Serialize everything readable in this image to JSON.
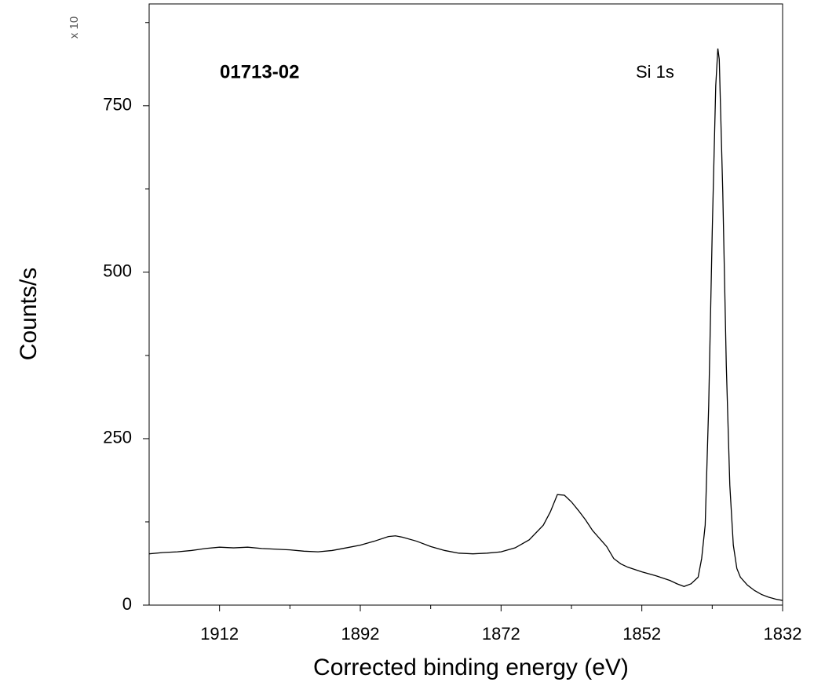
{
  "chart_data": {
    "type": "line",
    "annotations": [
      "01713-02",
      "Si 1s"
    ],
    "y_multiplier": "x 10",
    "x_label": "Corrected binding energy (eV)",
    "y_label": "Counts/s",
    "color": "#000000",
    "x": [
      1922,
      1920,
      1918,
      1916,
      1914,
      1912,
      1910,
      1908,
      1906,
      1904,
      1902,
      1900,
      1898,
      1896,
      1894,
      1892,
      1890,
      1888,
      1887,
      1886,
      1884,
      1882,
      1880,
      1878,
      1876,
      1874,
      1872,
      1870,
      1868,
      1866,
      1865,
      1864,
      1863,
      1862,
      1861,
      1860,
      1859,
      1858,
      1857,
      1856,
      1855,
      1854,
      1852,
      1850,
      1848,
      1847,
      1846,
      1845,
      1844,
      1843.5,
      1843,
      1842.5,
      1842,
      1841.5,
      1841.2,
      1841,
      1840.5,
      1840,
      1839.5,
      1839,
      1838.5,
      1838,
      1837,
      1836,
      1835,
      1834,
      1833,
      1832
    ],
    "values": [
      77,
      79,
      80,
      82,
      85,
      87,
      86,
      87,
      85,
      84,
      83,
      81,
      80,
      82,
      86,
      90,
      96,
      103,
      104,
      102,
      96,
      88,
      82,
      78,
      77,
      78,
      80,
      86,
      98,
      120,
      140,
      166,
      165,
      155,
      142,
      128,
      112,
      100,
      88,
      70,
      62,
      57,
      50,
      44,
      37,
      32,
      28,
      32,
      42,
      70,
      120,
      300,
      560,
      780,
      836,
      820,
      620,
      360,
      180,
      90,
      55,
      42,
      30,
      22,
      16,
      12,
      9,
      7
    ],
    "xlim": [
      1922,
      1832
    ],
    "ylim": [
      0,
      903
    ],
    "xticks": [
      1912,
      1892,
      1872,
      1852,
      1832
    ],
    "yticks": [
      0,
      250,
      500,
      750
    ]
  }
}
